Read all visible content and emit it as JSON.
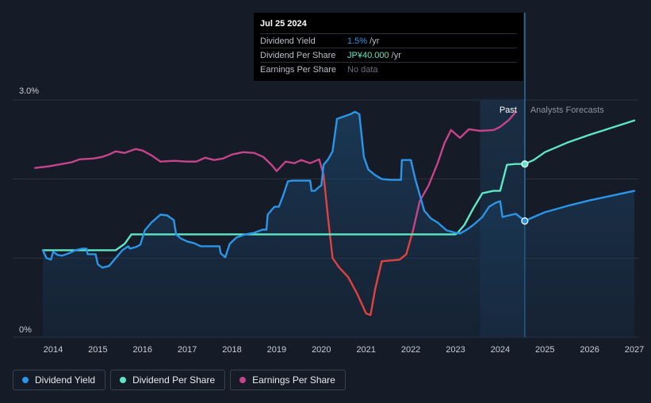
{
  "chart_data": {
    "type": "line",
    "title": "",
    "y_axis": {
      "min": 0,
      "max": 3.0,
      "tick_labels": [
        "3.0%",
        "0%"
      ]
    },
    "x_axis": {
      "min": 2013.75,
      "max": 2027.0,
      "tick_labels": [
        "2014",
        "2015",
        "2016",
        "2017",
        "2018",
        "2019",
        "2020",
        "2021",
        "2022",
        "2023",
        "2024",
        "2025",
        "2026",
        "2027"
      ]
    },
    "past_label": "Past",
    "forecast_label": "Analysts Forecasts",
    "forecast_start": 2023.55,
    "now": 2024.55,
    "series": [
      {
        "name": "Dividend Yield",
        "color": "#2b95e8",
        "past": [
          [
            2013.77,
            1.1
          ],
          [
            2013.85,
            1.0
          ],
          [
            2013.95,
            0.98
          ],
          [
            2014.0,
            1.08
          ],
          [
            2014.1,
            1.04
          ],
          [
            2014.2,
            1.03
          ],
          [
            2014.35,
            1.06
          ],
          [
            2014.5,
            1.1
          ],
          [
            2014.65,
            1.12
          ],
          [
            2014.75,
            1.12
          ],
          [
            2014.77,
            1.05
          ],
          [
            2014.95,
            1.05
          ],
          [
            2015.0,
            0.92
          ],
          [
            2015.1,
            0.88
          ],
          [
            2015.25,
            0.9
          ],
          [
            2015.4,
            1.0
          ],
          [
            2015.55,
            1.1
          ],
          [
            2015.68,
            1.15
          ],
          [
            2015.72,
            1.12
          ],
          [
            2015.85,
            1.14
          ],
          [
            2015.95,
            1.17
          ],
          [
            2016.05,
            1.35
          ],
          [
            2016.2,
            1.45
          ],
          [
            2016.4,
            1.55
          ],
          [
            2016.55,
            1.54
          ],
          [
            2016.7,
            1.48
          ],
          [
            2016.75,
            1.3
          ],
          [
            2016.85,
            1.25
          ],
          [
            2017.0,
            1.21
          ],
          [
            2017.15,
            1.19
          ],
          [
            2017.3,
            1.15
          ],
          [
            2017.5,
            1.15
          ],
          [
            2017.72,
            1.15
          ],
          [
            2017.75,
            1.06
          ],
          [
            2017.85,
            1.01
          ],
          [
            2017.95,
            1.18
          ],
          [
            2018.1,
            1.26
          ],
          [
            2018.3,
            1.3
          ],
          [
            2018.5,
            1.32
          ],
          [
            2018.68,
            1.36
          ],
          [
            2018.77,
            1.36
          ],
          [
            2018.8,
            1.55
          ],
          [
            2018.95,
            1.65
          ],
          [
            2019.05,
            1.65
          ],
          [
            2019.15,
            1.8
          ],
          [
            2019.25,
            1.97
          ],
          [
            2019.35,
            1.98
          ],
          [
            2019.55,
            1.98
          ],
          [
            2019.75,
            1.98
          ],
          [
            2019.78,
            1.85
          ],
          [
            2019.85,
            1.85
          ],
          [
            2019.95,
            1.9
          ],
          [
            2020.0,
            1.92
          ],
          [
            2020.05,
            2.18
          ],
          [
            2020.15,
            2.25
          ],
          [
            2020.25,
            2.35
          ],
          [
            2020.35,
            2.76
          ],
          [
            2020.5,
            2.79
          ],
          [
            2020.65,
            2.82
          ],
          [
            2020.75,
            2.85
          ],
          [
            2020.85,
            2.82
          ],
          [
            2020.95,
            2.28
          ],
          [
            2021.05,
            2.12
          ],
          [
            2021.2,
            2.05
          ],
          [
            2021.35,
            2.0
          ],
          [
            2021.55,
            1.99
          ],
          [
            2021.78,
            1.99
          ],
          [
            2021.8,
            2.24
          ],
          [
            2022.0,
            2.24
          ],
          [
            2022.1,
            2.0
          ],
          [
            2022.2,
            1.8
          ],
          [
            2022.3,
            1.6
          ],
          [
            2022.45,
            1.5
          ],
          [
            2022.6,
            1.45
          ],
          [
            2022.8,
            1.35
          ],
          [
            2023.0,
            1.32
          ],
          [
            2023.1,
            1.31
          ],
          [
            2023.25,
            1.36
          ],
          [
            2023.4,
            1.42
          ],
          [
            2023.6,
            1.52
          ],
          [
            2023.75,
            1.65
          ],
          [
            2023.9,
            1.7
          ],
          [
            2024.0,
            1.72
          ],
          [
            2024.05,
            1.52
          ],
          [
            2024.2,
            1.54
          ],
          [
            2024.35,
            1.56
          ],
          [
            2024.55,
            1.47
          ]
        ],
        "forecast": [
          [
            2024.55,
            1.47
          ],
          [
            2024.75,
            1.52
          ],
          [
            2025.0,
            1.58
          ],
          [
            2025.5,
            1.66
          ],
          [
            2026.0,
            1.73
          ],
          [
            2026.5,
            1.79
          ],
          [
            2027.0,
            1.85
          ]
        ]
      },
      {
        "name": "Dividend Per Share",
        "color": "#5ee6c5",
        "past": [
          [
            2013.77,
            1.1
          ],
          [
            2015.4,
            1.1
          ],
          [
            2015.6,
            1.18
          ],
          [
            2015.75,
            1.3
          ],
          [
            2016.0,
            1.3
          ],
          [
            2017.0,
            1.3
          ],
          [
            2018.0,
            1.3
          ],
          [
            2019.0,
            1.3
          ],
          [
            2020.0,
            1.3
          ],
          [
            2021.0,
            1.3
          ],
          [
            2022.0,
            1.3
          ],
          [
            2023.0,
            1.3
          ],
          [
            2023.05,
            1.32
          ],
          [
            2023.2,
            1.42
          ],
          [
            2023.4,
            1.63
          ],
          [
            2023.6,
            1.82
          ],
          [
            2023.85,
            1.85
          ],
          [
            2024.0,
            1.85
          ],
          [
            2024.15,
            2.18
          ],
          [
            2024.35,
            2.19
          ],
          [
            2024.55,
            2.19
          ]
        ],
        "forecast": [
          [
            2024.55,
            2.19
          ],
          [
            2024.75,
            2.24
          ],
          [
            2025.0,
            2.34
          ],
          [
            2025.5,
            2.46
          ],
          [
            2026.0,
            2.56
          ],
          [
            2026.5,
            2.65
          ],
          [
            2027.0,
            2.74
          ]
        ]
      },
      {
        "name": "Earnings Per Share",
        "color": "#c7448a",
        "past": [
          [
            2013.6,
            2.14
          ],
          [
            2013.9,
            2.16
          ],
          [
            2014.2,
            2.19
          ],
          [
            2014.4,
            2.21
          ],
          [
            2014.6,
            2.25
          ],
          [
            2014.9,
            2.26
          ],
          [
            2015.1,
            2.28
          ],
          [
            2015.25,
            2.31
          ],
          [
            2015.4,
            2.35
          ],
          [
            2015.6,
            2.33
          ],
          [
            2015.85,
            2.38
          ],
          [
            2016.0,
            2.36
          ],
          [
            2016.2,
            2.3
          ],
          [
            2016.4,
            2.22
          ],
          [
            2016.7,
            2.23
          ],
          [
            2017.0,
            2.22
          ],
          [
            2017.2,
            2.22
          ],
          [
            2017.4,
            2.27
          ],
          [
            2017.6,
            2.24
          ],
          [
            2017.8,
            2.26
          ],
          [
            2018.0,
            2.31
          ],
          [
            2018.25,
            2.34
          ],
          [
            2018.5,
            2.33
          ],
          [
            2018.7,
            2.28
          ],
          [
            2018.9,
            2.17
          ],
          [
            2019.0,
            2.1
          ],
          [
            2019.2,
            2.22
          ],
          [
            2019.4,
            2.2
          ],
          [
            2019.55,
            2.24
          ],
          [
            2019.75,
            2.2
          ],
          [
            2019.95,
            2.25
          ],
          [
            2020.05,
            2.05
          ],
          [
            2020.15,
            1.5
          ],
          [
            2020.25,
            1.0
          ],
          [
            2020.4,
            0.88
          ],
          [
            2020.6,
            0.76
          ],
          [
            2020.8,
            0.55
          ],
          [
            2021.0,
            0.3
          ],
          [
            2021.1,
            0.28
          ],
          [
            2021.2,
            0.6
          ],
          [
            2021.35,
            0.96
          ],
          [
            2021.55,
            0.97
          ],
          [
            2021.75,
            0.98
          ],
          [
            2021.9,
            1.05
          ],
          [
            2022.05,
            1.35
          ],
          [
            2022.2,
            1.72
          ],
          [
            2022.4,
            1.92
          ],
          [
            2022.6,
            2.2
          ],
          [
            2022.75,
            2.45
          ],
          [
            2022.9,
            2.62
          ],
          [
            2023.1,
            2.52
          ],
          [
            2023.3,
            2.63
          ],
          [
            2023.55,
            2.61
          ],
          [
            2023.85,
            2.62
          ],
          [
            2024.0,
            2.66
          ],
          [
            2024.2,
            2.75
          ],
          [
            2024.35,
            2.85
          ]
        ],
        "forecast": []
      }
    ],
    "markers": [
      {
        "series": "Dividend Yield",
        "x": 2024.55,
        "y": 1.47
      },
      {
        "series": "Dividend Per Share",
        "x": 2024.55,
        "y": 2.19
      }
    ]
  },
  "tooltip": {
    "date": "Jul 25 2024",
    "rows": [
      {
        "label": "Dividend Yield",
        "value": "1.5%",
        "unit": " /yr",
        "color": "#2b95e8"
      },
      {
        "label": "Dividend Per Share",
        "value": "JP¥40.000",
        "unit": " /yr",
        "color": "#5ee6c5"
      },
      {
        "label": "Earnings Per Share",
        "value": "No data",
        "unit": ""
      }
    ]
  },
  "legend": [
    {
      "label": "Dividend Yield",
      "color": "#2b95e8"
    },
    {
      "label": "Dividend Per Share",
      "color": "#5ee6c5"
    },
    {
      "label": "Earnings Per Share",
      "color": "#c7448a"
    }
  ]
}
